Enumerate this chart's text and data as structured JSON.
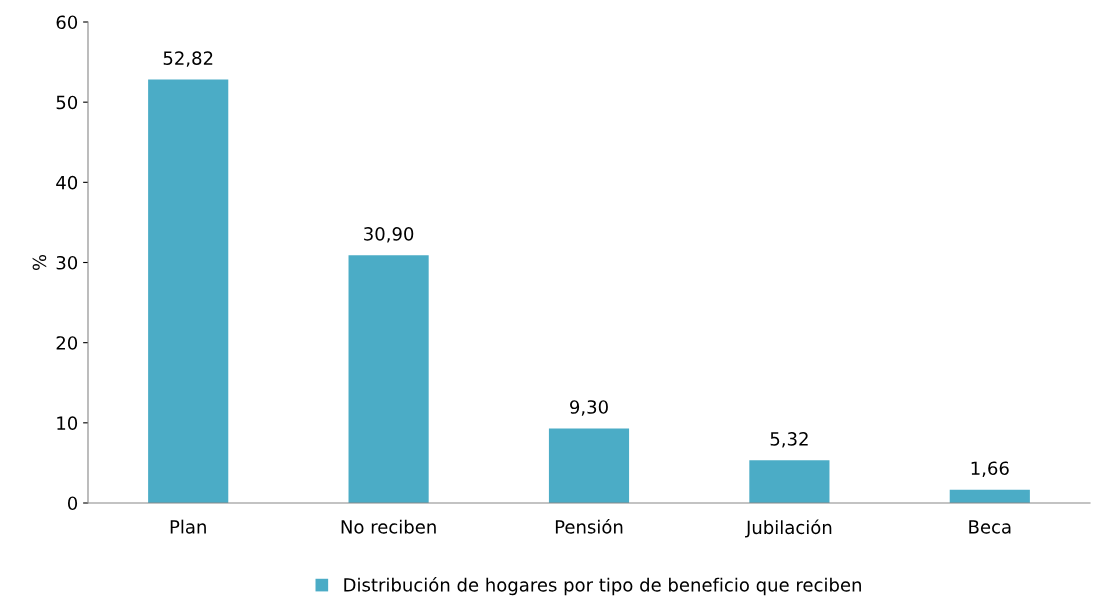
{
  "chart_data": {
    "type": "bar",
    "ylabel": "%",
    "categories": [
      "Plan",
      "No reciben",
      "Pensión",
      "Jubilación",
      "Beca"
    ],
    "series": [
      {
        "name": "Distribución de hogares por tipo de beneficio que reciben",
        "color": "#4bacc6",
        "values": [
          52.82,
          30.9,
          9.3,
          5.32,
          1.66
        ],
        "value_labels": [
          "52,82",
          "30,90",
          "9,30",
          "5,32",
          "1,66"
        ]
      }
    ],
    "ylim": [
      0,
      60
    ],
    "yticks": [
      0,
      10,
      20,
      30,
      40,
      50,
      60
    ],
    "grid": false,
    "legend": "bottom"
  }
}
